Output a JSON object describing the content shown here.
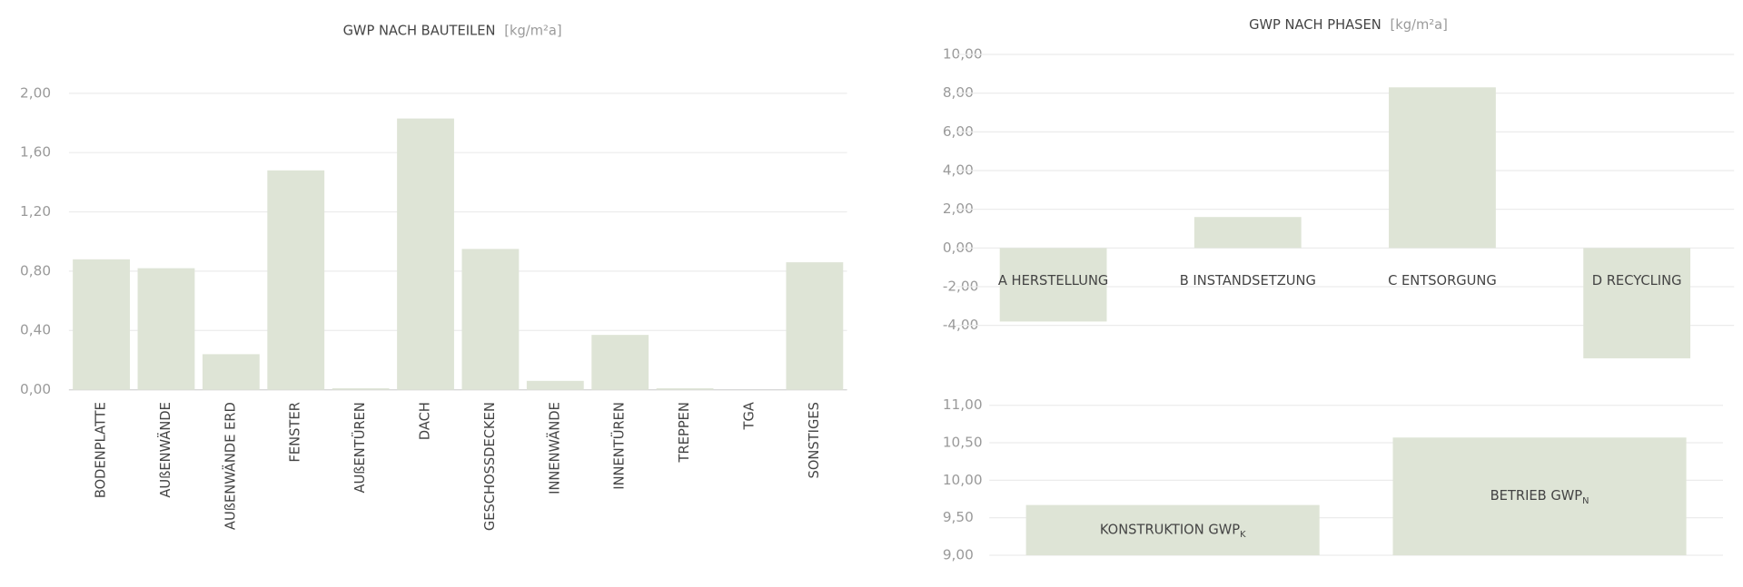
{
  "chart_data": [
    {
      "type": "bar",
      "title": "GWP NACH BAUTEILEN",
      "unit": "[kg/m²a]",
      "categories": [
        "BODENPLATTE",
        "AUßENWÄNDE",
        "AUßENWÄNDE ERD",
        "FENSTER",
        "AUßENTÜREN",
        "DACH",
        "GESCHOSSDECKEN",
        "INNENWÄNDE",
        "INNENTÜREN",
        "TREPPEN",
        "TGA",
        "SONSTIGES"
      ],
      "values": [
        0.88,
        0.82,
        0.24,
        1.48,
        0.01,
        1.83,
        0.95,
        0.06,
        0.37,
        0.01,
        0,
        0.86
      ],
      "color": "#dee4d6",
      "ylim": [
        0,
        2
      ],
      "yticks": [
        {
          "value": 0,
          "label": "0,00"
        },
        {
          "value": 0.4,
          "label": "0,40"
        },
        {
          "value": 0.8,
          "label": "0,80"
        },
        {
          "value": 1.2,
          "label": "1,20"
        },
        {
          "value": 1.6,
          "label": "1,60"
        },
        {
          "value": 2,
          "label": "2,00"
        }
      ],
      "grid": true
    },
    {
      "type": "bar",
      "title": "GWP NACH PHASEN",
      "unit": "[kg/m²a]",
      "categories": [
        "A HERSTELLUNG",
        "B INSTANDSETZUNG",
        "C ENTSORGUNG",
        "D RECYCLING"
      ],
      "values": [
        -3.8,
        1.6,
        8.3,
        -5.7
      ],
      "color": "#dee4d6",
      "ylim": [
        -6,
        10
      ],
      "yticks": [
        {
          "value": -4,
          "label": "-4,00"
        },
        {
          "value": -2,
          "label": "-2,00"
        },
        {
          "value": 0,
          "label": "0,00"
        },
        {
          "value": 2,
          "label": "2,00"
        },
        {
          "value": 4,
          "label": "4,00"
        },
        {
          "value": 6,
          "label": "6,00"
        },
        {
          "value": 8,
          "label": "8,00"
        },
        {
          "value": 10,
          "label": "10,00"
        }
      ],
      "grid": true
    },
    {
      "type": "bar",
      "categories": [
        "KONSTRUKTION GWP",
        "BETRIEB GWP"
      ],
      "category_subscripts": [
        "K",
        "N"
      ],
      "values": [
        9.67,
        10.57
      ],
      "color": "#dee4d6",
      "ylim": [
        9,
        11
      ],
      "yticks": [
        {
          "value": 9,
          "label": "9,00"
        },
        {
          "value": 9.5,
          "label": "9,50"
        },
        {
          "value": 10,
          "label": "10,00"
        },
        {
          "value": 10.5,
          "label": "10,50"
        },
        {
          "value": 11,
          "label": "11,00"
        }
      ],
      "grid": true
    }
  ]
}
